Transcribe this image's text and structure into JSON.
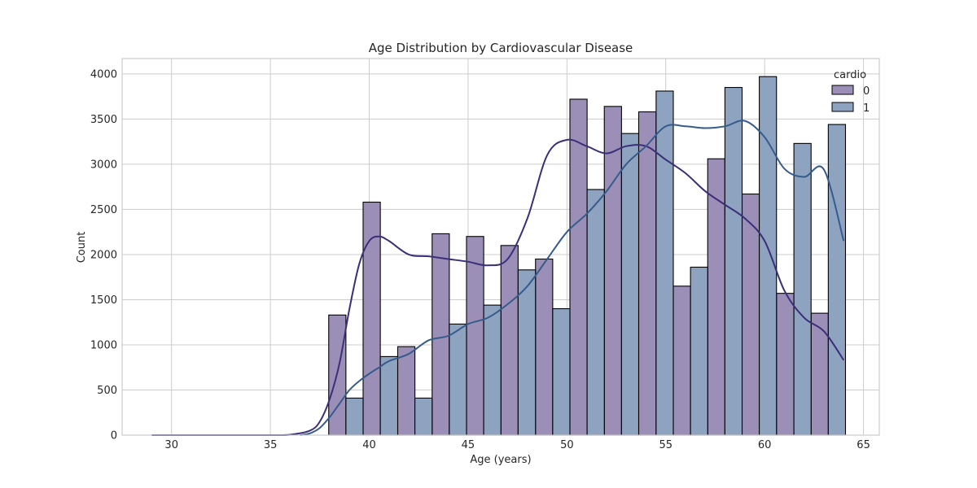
{
  "chart_data": {
    "type": "bar",
    "title": "Age Distribution by Cardiovascular Disease",
    "xlabel": "Age (years)",
    "ylabel": "Count",
    "xlim": [
      27.5,
      65.8
    ],
    "ylim": [
      0,
      4170
    ],
    "xticks": [
      30,
      35,
      40,
      45,
      50,
      55,
      60,
      65
    ],
    "yticks": [
      0,
      500,
      1000,
      1500,
      2000,
      2500,
      3000,
      3500,
      4000
    ],
    "grid": true,
    "legend": {
      "title": "cardio",
      "placement": "top-right"
    },
    "bins": [
      [
        37.95,
        38.82
      ],
      [
        38.82,
        39.69
      ],
      [
        39.69,
        40.56
      ],
      [
        40.56,
        41.44
      ],
      [
        41.44,
        42.31
      ],
      [
        42.31,
        43.18
      ],
      [
        43.18,
        44.05
      ],
      [
        44.05,
        44.92
      ],
      [
        44.92,
        45.79
      ],
      [
        45.79,
        46.66
      ],
      [
        46.66,
        47.53
      ],
      [
        47.53,
        48.41
      ],
      [
        48.41,
        49.28
      ],
      [
        49.28,
        50.15
      ],
      [
        50.15,
        51.02
      ],
      [
        51.02,
        51.89
      ],
      [
        51.89,
        52.76
      ],
      [
        52.76,
        53.63
      ],
      [
        53.63,
        54.51
      ],
      [
        54.51,
        55.38
      ],
      [
        55.38,
        56.25
      ],
      [
        56.25,
        57.12
      ],
      [
        57.12,
        57.99
      ],
      [
        57.99,
        58.86
      ],
      [
        58.86,
        59.73
      ],
      [
        59.73,
        60.6
      ],
      [
        60.6,
        61.48
      ],
      [
        61.48,
        62.35
      ],
      [
        62.35,
        63.22
      ],
      [
        63.22,
        64.09
      ]
    ],
    "series": [
      {
        "name": "0",
        "color": "#9b8fb8",
        "values": [
          1330,
          0,
          2580,
          0,
          980,
          0,
          2230,
          0,
          2200,
          0,
          2100,
          0,
          1950,
          0,
          3720,
          0,
          3640,
          0,
          3580,
          0,
          1650,
          0,
          3060,
          0,
          2670,
          0,
          1570,
          0,
          1350,
          0
        ],
        "kde": {
          "color": "#3b2f78",
          "x": [
            29.0,
            31,
            33,
            35,
            36,
            37,
            37.5,
            38,
            38.5,
            39,
            39.5,
            40,
            40.5,
            41,
            42,
            43,
            44,
            45,
            46,
            47,
            48,
            49,
            50,
            51,
            52,
            53,
            54,
            55,
            56,
            57,
            58,
            59,
            60,
            61,
            62,
            63,
            64
          ],
          "y": [
            0,
            0,
            0,
            0,
            5,
            50,
            150,
            400,
            800,
            1400,
            1900,
            2150,
            2200,
            2150,
            2000,
            1980,
            1950,
            1920,
            1880,
            1950,
            2400,
            3100,
            3270,
            3200,
            3120,
            3200,
            3200,
            3050,
            2900,
            2700,
            2550,
            2400,
            2150,
            1600,
            1300,
            1150,
            830
          ]
        }
      },
      {
        "name": "1",
        "color": "#8ea3c0",
        "values": [
          0,
          410,
          0,
          870,
          0,
          410,
          0,
          1230,
          0,
          1440,
          0,
          1830,
          0,
          1400,
          0,
          2720,
          0,
          3340,
          0,
          3810,
          0,
          1860,
          0,
          3850,
          0,
          3970,
          0,
          3230,
          0,
          3440
        ],
        "kde": {
          "color": "#355c8c",
          "x": [
            36.5,
            37,
            37.5,
            38,
            38.5,
            39,
            39.5,
            40,
            40.5,
            41,
            42,
            43,
            44,
            45,
            46,
            47,
            48,
            49,
            50,
            51,
            52,
            53,
            54,
            55,
            56,
            57,
            58,
            59,
            60,
            61,
            62,
            63,
            64
          ],
          "y": [
            0,
            20,
            80,
            200,
            350,
            500,
            600,
            680,
            750,
            820,
            900,
            1050,
            1100,
            1230,
            1300,
            1450,
            1650,
            1950,
            2250,
            2450,
            2700,
            3000,
            3200,
            3420,
            3420,
            3400,
            3420,
            3480,
            3300,
            2950,
            2860,
            2940,
            2150
          ]
        }
      }
    ]
  }
}
